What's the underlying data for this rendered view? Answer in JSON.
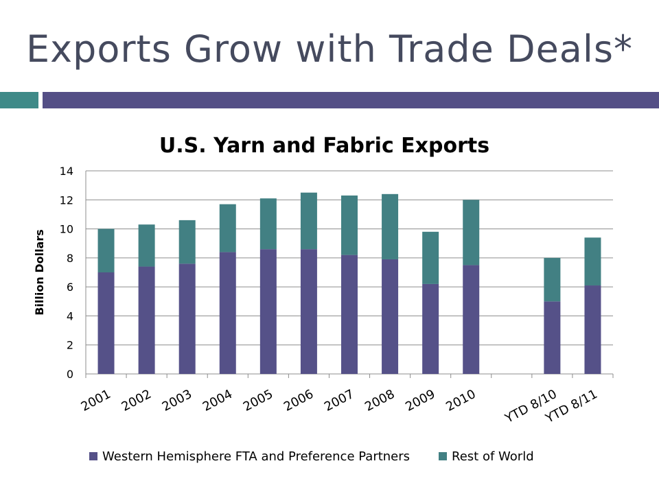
{
  "slide": {
    "title": "Exports Grow with Trade Deals*"
  },
  "colors": {
    "title_text": "#454a5e",
    "accent_teal": "#3f8a88",
    "accent_purple": "#544f86",
    "series_1": "#555188",
    "series_2": "#428083",
    "gridline": "#8c8c8c"
  },
  "chart_data": {
    "type": "bar",
    "stacked": true,
    "title": "U.S. Yarn and Fabric Exports",
    "xlabel": "",
    "ylabel": "Billion Dollars",
    "ylim": [
      0,
      14
    ],
    "yticks": [
      0,
      2,
      4,
      6,
      8,
      10,
      12,
      14
    ],
    "grid": true,
    "legend_position": "bottom",
    "categories": [
      "2001",
      "2002",
      "2003",
      "2004",
      "2005",
      "2006",
      "2007",
      "2008",
      "2009",
      "2010",
      "",
      "YTD 8/10",
      "YTD 8/11"
    ],
    "series": [
      {
        "name": "Western Hemisphere FTA and Preference Partners",
        "values": [
          7.0,
          7.4,
          7.6,
          8.4,
          8.6,
          8.6,
          8.2,
          7.9,
          6.2,
          7.5,
          null,
          5.0,
          6.1
        ]
      },
      {
        "name": "Rest of World",
        "values": [
          3.0,
          2.9,
          3.0,
          3.3,
          3.5,
          3.9,
          4.1,
          4.5,
          3.6,
          4.5,
          null,
          3.0,
          3.3
        ]
      }
    ]
  }
}
